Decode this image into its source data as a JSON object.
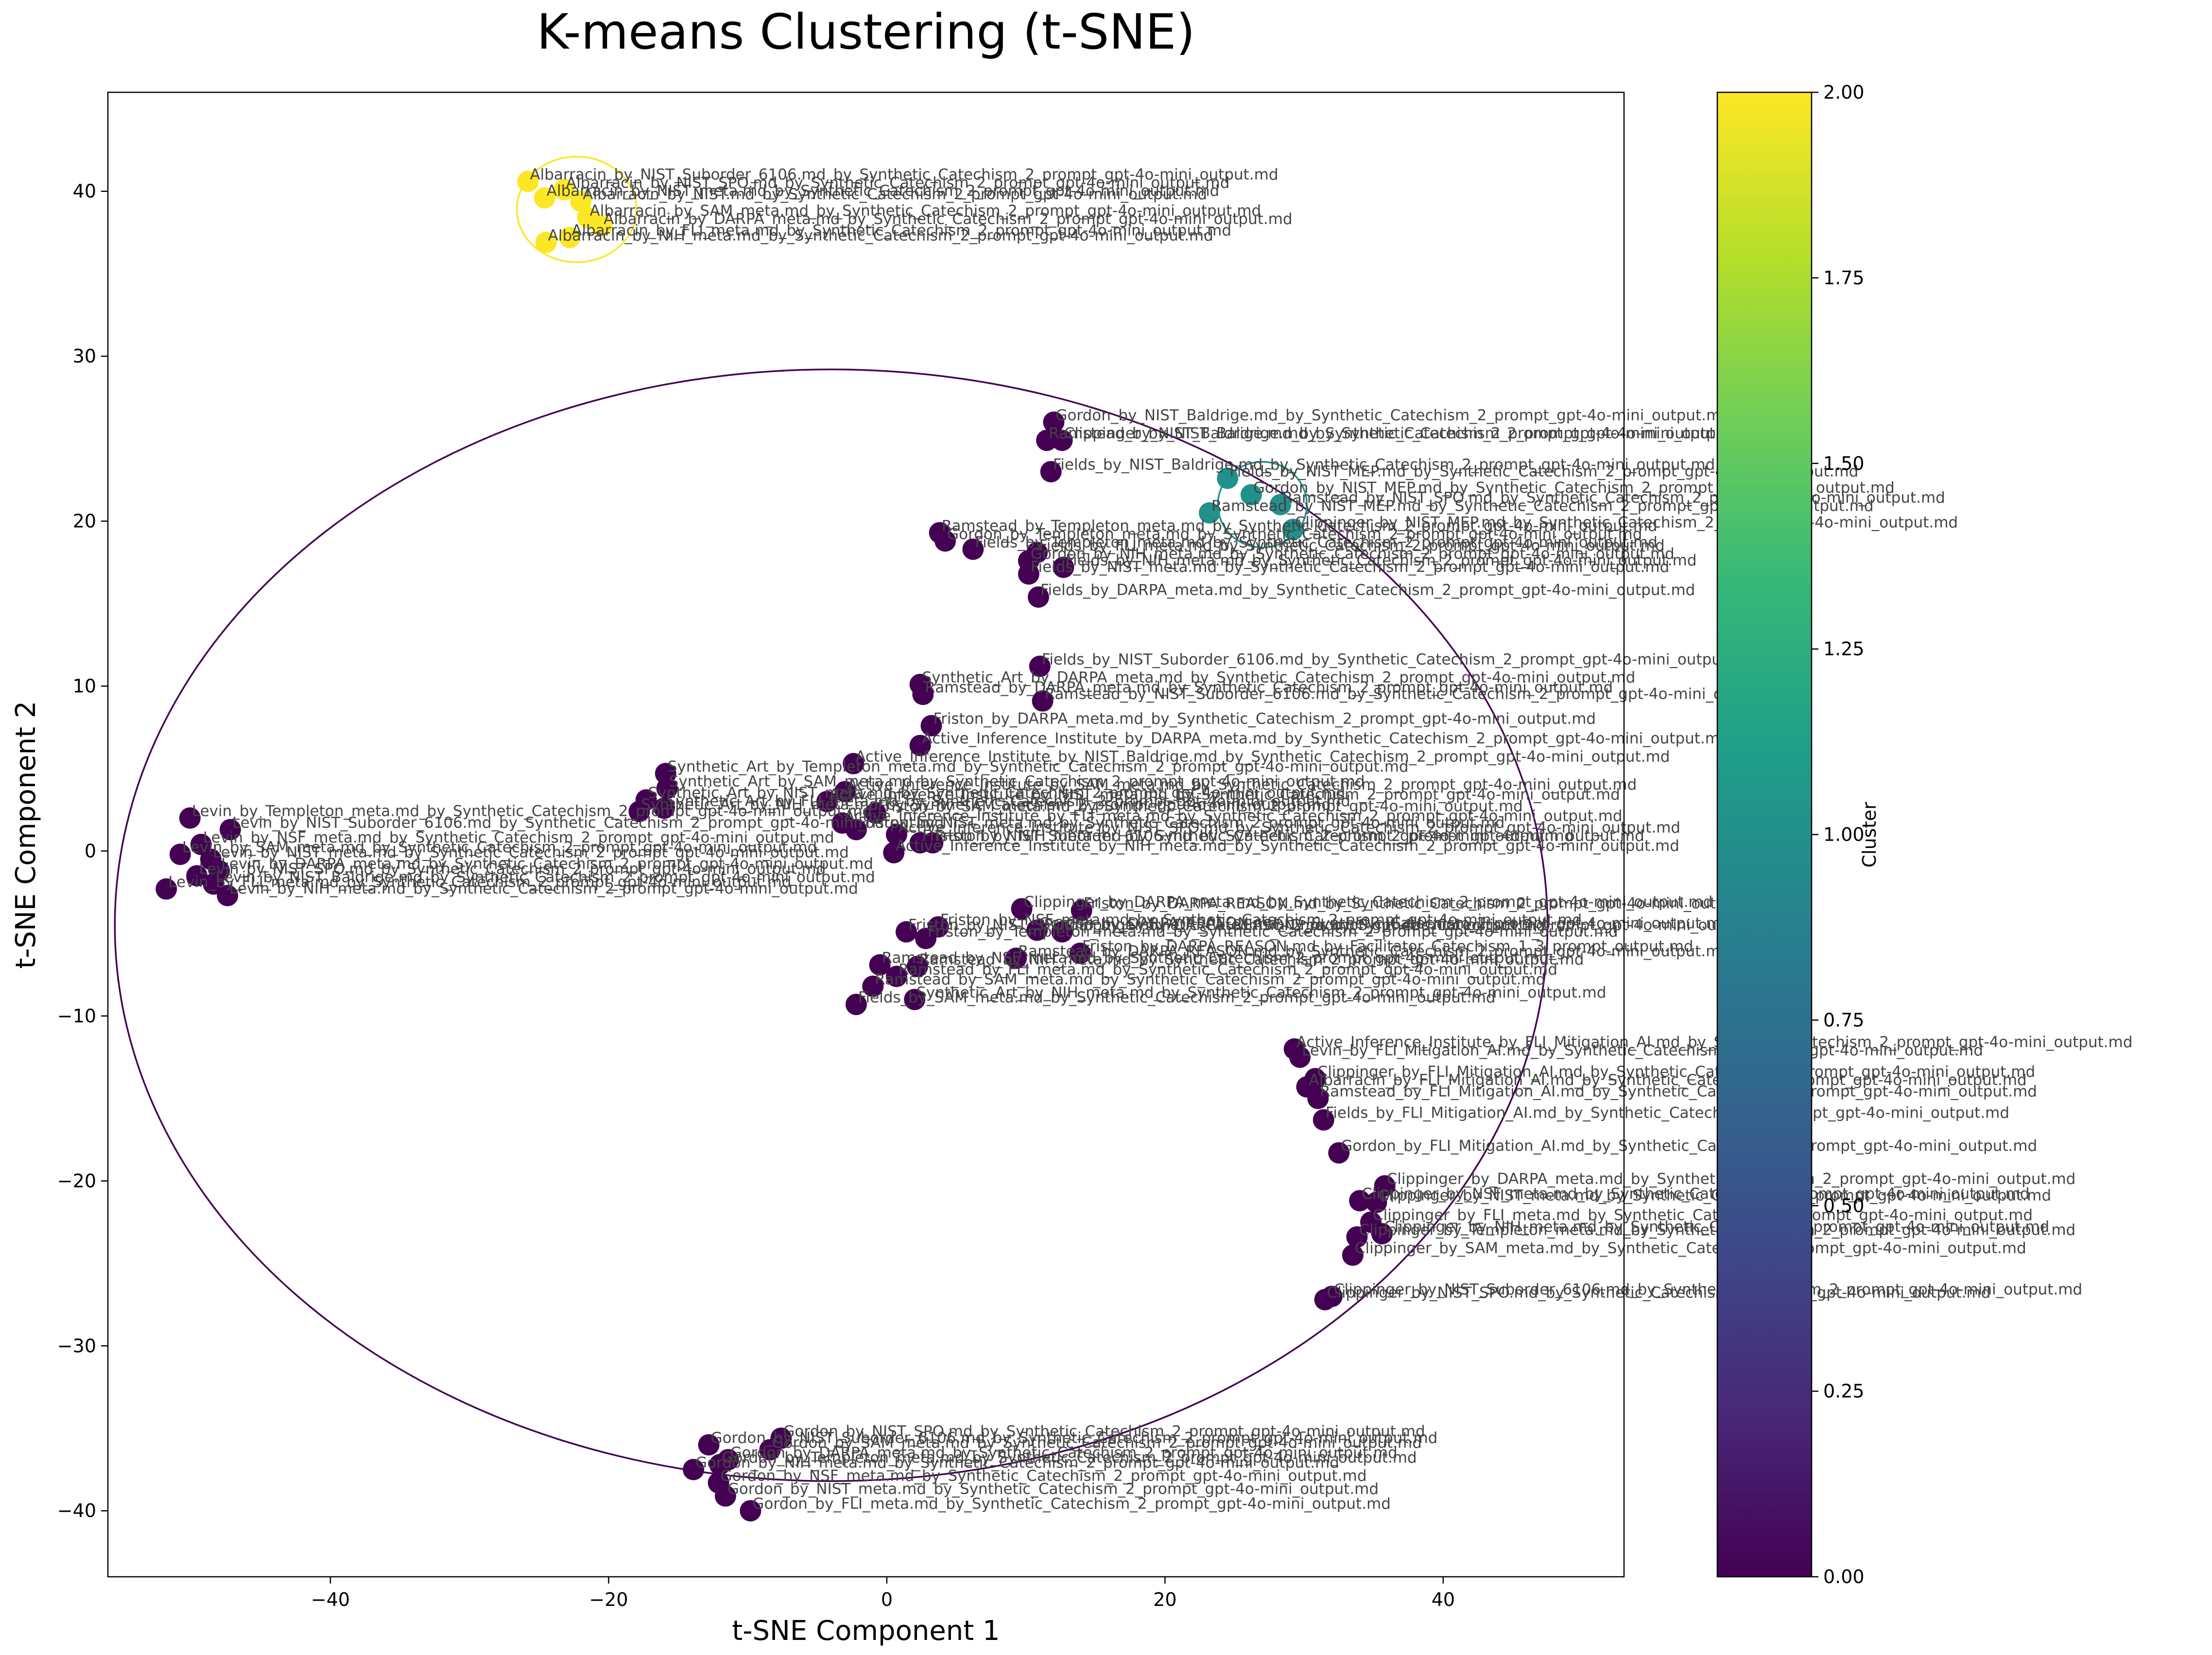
{
  "chart_data": {
    "type": "scatter",
    "title": "K-means Clustering (t-SNE)",
    "xlabel": "t-SNE Component 1",
    "ylabel": "t-SNE Component 2",
    "xlim": [
      -56,
      53
    ],
    "ylim": [
      -44,
      46
    ],
    "xticks": [
      -40,
      -20,
      0,
      20,
      40
    ],
    "yticks": [
      -40,
      -30,
      -20,
      -10,
      0,
      10,
      20,
      30,
      40
    ],
    "grid": false,
    "colorbar": {
      "label": "Cluster",
      "range": [
        0,
        2
      ],
      "ticks": [
        "0.00",
        "0.25",
        "0.50",
        "0.75",
        "1.00",
        "1.25",
        "1.50",
        "1.75",
        "2.00"
      ],
      "colormap": [
        "#440154",
        "#482878",
        "#3e4989",
        "#31688e",
        "#26828e",
        "#1f9e89",
        "#35b779",
        "#6ece58",
        "#b5de2b",
        "#fde725"
      ]
    },
    "cluster_colors": [
      "#440154",
      "#21918c",
      "#fde725"
    ],
    "cluster_ellipses": [
      {
        "cluster": 0,
        "cx": -4,
        "cy": -4.5,
        "rx": 51.5,
        "ry": 33.7
      },
      {
        "cluster": 1,
        "cx": 27,
        "cy": 21,
        "rx": 3.2,
        "ry": 2.6
      },
      {
        "cluster": 2,
        "cx": -22.3,
        "cy": 38.9,
        "rx": 4.3,
        "ry": 3.2
      }
    ],
    "points": [
      {
        "x": -25.8,
        "y": 40.6,
        "c": 2,
        "label": "Albarracin_by_NIST_Suborder_6106.md_by_Synthetic_Catechism_2_prompt_gpt-4o-mini_output.md"
      },
      {
        "x": -24.6,
        "y": 39.6,
        "c": 2,
        "label": "Albarracin_by_NIST_meta.md_by_Synthetic_Catechism_2_prompt_gpt-4o-mini_output.md"
      },
      {
        "x": -23.2,
        "y": 40.1,
        "c": 2,
        "label": "Albarracin_by_NIST_SPO.md_by_Synthetic_Catechism_2_prompt_gpt-4o-mini_output.md"
      },
      {
        "x": -22.0,
        "y": 39.4,
        "c": 2,
        "label": "Albarracin_by_NIST.md_by_Synthetic_Catechism_2_prompt_gpt-4o-mini_output.md"
      },
      {
        "x": -21.5,
        "y": 38.4,
        "c": 2,
        "label": "Albarracin_by_SAM_meta.md_by_Synthetic_Catechism_2_prompt_gpt-4o-mini_output.md"
      },
      {
        "x": -20.5,
        "y": 37.9,
        "c": 2,
        "label": "Albarracin_by_DARPA_meta.md_by_Synthetic_Catechism_2_prompt_gpt-4o-mini_output.md"
      },
      {
        "x": -22.8,
        "y": 37.2,
        "c": 2,
        "label": "Albarracin_by_FLI_meta.md_by_Synthetic_Catechism_2_prompt_gpt-4o-mini_output.md"
      },
      {
        "x": -24.5,
        "y": 36.9,
        "c": 2,
        "label": "Albarracin_by_NIH_meta.md_by_Synthetic_Catechism_2_prompt_gpt-4o-mini_output.md"
      },
      {
        "x": 24.5,
        "y": 22.6,
        "c": 1,
        "label": "Fields_by_NIST_MEP.md_by_Synthetic_Catechism_2_prompt_gpt-4o-mini_output.md"
      },
      {
        "x": 26.2,
        "y": 21.6,
        "c": 1,
        "label": "Gordon_by_NIST_MEP.md_by_Synthetic_Catechism_2_prompt_gpt-4o-mini_output.md"
      },
      {
        "x": 28.3,
        "y": 21.0,
        "c": 1,
        "label": "Ramstead_by_NIST_SPO.md_by_Synthetic_Catechism_2_prompt_gpt-4o-mini_output.md"
      },
      {
        "x": 23.2,
        "y": 20.5,
        "c": 1,
        "label": "Ramstead_by_NIST_MEP.md_by_Synthetic_Catechism_2_prompt_gpt-4o-mini_output.md"
      },
      {
        "x": 29.2,
        "y": 19.5,
        "c": 1,
        "label": "Clippinger_by_NIST_MEP.md_by_Synthetic_Catechism_2_prompt_gpt-4o-mini_output.md"
      },
      {
        "x": 12.0,
        "y": 26.0,
        "c": 0,
        "label": "Gordon_by_NIST_Baldrige.md_by_Synthetic_Catechism_2_prompt_gpt-4o-mini_output.md"
      },
      {
        "x": 11.5,
        "y": 24.9,
        "c": 0,
        "label": "Ramstead_by_NIST_Baldrige.md_by_Synthetic_Catechism_2_prompt_gpt-4o-mini_output.md"
      },
      {
        "x": 12.6,
        "y": 24.9,
        "c": 0,
        "label": "Clippinger_by_NIST_Baldrige.md_by_Synthetic_Catechism_2_prompt_gpt-4o-mini_output.md"
      },
      {
        "x": 11.8,
        "y": 23.0,
        "c": 0,
        "label": "Fields_by_NIST_Baldrige.md_by_Synthetic_Catechism_2_prompt_gpt-4o-mini_output.md"
      },
      {
        "x": 3.8,
        "y": 19.3,
        "c": 0,
        "label": "Ramstead_by_Templeton_meta.md_by_Synthetic_Catechism_2_prompt_gpt-4o-mini_output.md"
      },
      {
        "x": 4.2,
        "y": 18.8,
        "c": 0,
        "label": "Gordon_by_Templeton_meta.md_by_Synthetic_Catechism_2_prompt_gpt-4o-mini_output.md"
      },
      {
        "x": 6.2,
        "y": 18.3,
        "c": 0,
        "label": "Fields_by_Templeton_meta.md_by_Synthetic_Catechism_2_prompt_gpt-4o-mini_output.md"
      },
      {
        "x": 10.8,
        "y": 18.1,
        "c": 0,
        "label": "Fields_by_FLI_meta.md_by_Synthetic_Catechism_2_prompt_gpt-4o-mini_output.md"
      },
      {
        "x": 10.2,
        "y": 17.6,
        "c": 0,
        "label": "Gordon_by_NIH_meta.md_by_Synthetic_Catechism_2_prompt_gpt-4o-mini_output.md"
      },
      {
        "x": 12.7,
        "y": 17.2,
        "c": 0,
        "label": "Fields_by_NIH_meta.md_by_Synthetic_Catechism_2_prompt_gpt-4o-mini_output.md"
      },
      {
        "x": 10.2,
        "y": 16.8,
        "c": 0,
        "label": "Fields_by_NIST_meta.md_by_Synthetic_Catechism_2_prompt_gpt-4o-mini_output.md"
      },
      {
        "x": 10.9,
        "y": 15.4,
        "c": 0,
        "label": "Fields_by_DARPA_meta.md_by_Synthetic_Catechism_2_prompt_gpt-4o-mini_output.md"
      },
      {
        "x": 11.0,
        "y": 11.2,
        "c": 0,
        "label": "Fields_by_NIST_Suborder_6106.md_by_Synthetic_Catechism_2_prompt_gpt-4o-mini_output.md"
      },
      {
        "x": 2.4,
        "y": 10.1,
        "c": 0,
        "label": "Synthetic_Art_by_DARPA_meta.md_by_Synthetic_Catechism_2_prompt_gpt-4o-mini_output.md"
      },
      {
        "x": 2.6,
        "y": 9.5,
        "c": 0,
        "label": "Ramstead_by_DARPA_meta.md_by_Synthetic_Catechism_2_prompt_gpt-4o-mini_output.md"
      },
      {
        "x": 11.2,
        "y": 9.1,
        "c": 0,
        "label": "Ramstead_by_NIST_Suborder_6106.md_by_Synthetic_Catechism_2_prompt_gpt-4o-mini_output.md"
      },
      {
        "x": 3.2,
        "y": 7.6,
        "c": 0,
        "label": "Friston_by_DARPA_meta.md_by_Synthetic_Catechism_2_prompt_gpt-4o-mini_output.md"
      },
      {
        "x": 2.4,
        "y": 6.4,
        "c": 0,
        "label": "Active_Inference_Institute_by_DARPA_meta.md_by_Synthetic_Catechism_2_prompt_gpt-4o-mini_output.md"
      },
      {
        "x": -2.4,
        "y": 5.3,
        "c": 0,
        "label": "Active_Inference_Institute_by_NIST_Baldrige.md_by_Synthetic_Catechism_2_prompt_gpt-4o-mini_output.md"
      },
      {
        "x": -15.9,
        "y": 4.7,
        "c": 0,
        "label": "Synthetic_Art_by_Templeton_meta.md_by_Synthetic_Catechism_2_prompt_gpt-4o-mini_output.md"
      },
      {
        "x": -15.8,
        "y": 3.8,
        "c": 0,
        "label": "Synthetic_Art_by_SAM_meta.md_by_Synthetic_Catechism_2_prompt_gpt-4o-mini_output.md"
      },
      {
        "x": -17.3,
        "y": 3.1,
        "c": 0,
        "label": "Synthetic_Art_by_NIST_meta.md_by_Synthetic_Catechism_2_prompt_gpt-4o-mini_output.md"
      },
      {
        "x": -16.0,
        "y": 2.6,
        "c": 0,
        "label": "Synthetic_Art_by_FLI_meta.md_by_Synthetic_Catechism_2_prompt_gpt-4o-mini_output.md"
      },
      {
        "x": -17.8,
        "y": 2.4,
        "c": 0,
        "label": "Synthetic_Art_by_NIH_meta.md_by_Synthetic_Catechism_2_prompt_gpt-4o-mini_output.md"
      },
      {
        "x": -3.0,
        "y": 3.6,
        "c": 0,
        "label": "Active_Inference_Institute_by_SAM_meta.md_by_Synthetic_Catechism_2_prompt_gpt-4o-mini_output.md"
      },
      {
        "x": -4.3,
        "y": 3.0,
        "c": 0,
        "label": "Active_Inference_Institute_by_NIST_meta.md_by_Synthetic_Catechism_2_prompt_gpt-4o-mini_output.md"
      },
      {
        "x": -0.8,
        "y": 2.3,
        "c": 0,
        "label": "Friston_by_SAM_meta.md_by_Synthetic_Catechism_2_prompt_gpt-4o-mini_output.md"
      },
      {
        "x": -3.2,
        "y": 1.7,
        "c": 0,
        "label": "Active_Inference_Institute_by_FLI_meta.md_by_Synthetic_Catechism_2_prompt_gpt-4o-mini_output.md"
      },
      {
        "x": -2.2,
        "y": 1.3,
        "c": 0,
        "label": "Friston_by_NIST_meta.md_by_Synthetic_Catechism_2_prompt_gpt-4o-mini_output.md"
      },
      {
        "x": 0.7,
        "y": 1.0,
        "c": 0,
        "label": "Active_Inference_Institute_by_NIST_SPO.md_by_Synthetic_Catechism_2_prompt_gpt-4o-mini_output.md"
      },
      {
        "x": 2.4,
        "y": 0.5,
        "c": 0,
        "label": "Friston_by_NIST_Suborder_6106.md_by_Synthetic_Catechism_2_prompt_gpt-4o-mini_output.md"
      },
      {
        "x": 3.3,
        "y": 0.5,
        "c": 0,
        "label": "Friston_by_NIH_meta.md_by_Synthetic_Catechism_2_prompt_gpt-4o-mini_output.md"
      },
      {
        "x": 0.5,
        "y": -0.1,
        "c": 0,
        "label": "Active_Inference_Institute_by_NIH_meta.md_by_Synthetic_Catechism_2_prompt_gpt-4o-mini_output.md"
      },
      {
        "x": -50.1,
        "y": 2.0,
        "c": 0,
        "label": "Levin_by_Templeton_meta.md_by_Synthetic_Catechism_2_prompt_gpt-4o-mini_output.md"
      },
      {
        "x": -47.2,
        "y": 1.3,
        "c": 0,
        "label": "Levin_by_NIST_Suborder_6106.md_by_Synthetic_Catechism_2_prompt_gpt-4o-mini_output.md"
      },
      {
        "x": -49.3,
        "y": 0.4,
        "c": 0,
        "label": "Levin_by_NSF_meta.md_by_Synthetic_Catechism_2_prompt_gpt-4o-mini_output.md"
      },
      {
        "x": -50.8,
        "y": -0.2,
        "c": 0,
        "label": "Levin_by_SAM_meta.md_by_Synthetic_Catechism_2_prompt_gpt-4o-mini_output.md"
      },
      {
        "x": -48.6,
        "y": -0.5,
        "c": 0,
        "label": "Levin_by_NIST_meta.md_by_Synthetic_Catechism_2_prompt_gpt-4o-mini_output.md"
      },
      {
        "x": -48.0,
        "y": -1.2,
        "c": 0,
        "label": "Levin_by_DARPA_meta.md_by_Synthetic_Catechism_2_prompt_gpt-4o-mini_output.md"
      },
      {
        "x": -49.6,
        "y": -1.5,
        "c": 0,
        "label": "Levin_by_NIST_SPO.md_by_Synthetic_Catechism_2_prompt_gpt-4o-mini_output.md"
      },
      {
        "x": -48.4,
        "y": -2.0,
        "c": 0,
        "label": "Levin_by_NIST_Baldrige.md_by_Synthetic_Catechism_2_prompt_gpt-4o-mini_output.md"
      },
      {
        "x": -51.8,
        "y": -2.3,
        "c": 0,
        "label": "Levin_by_FLI_meta.md_by_Synthetic_Catechism_2_prompt_gpt-4o-mini_output.md"
      },
      {
        "x": -47.4,
        "y": -2.7,
        "c": 0,
        "label": "Levin_by_NIH_meta.md_by_Synthetic_Catechism_2_prompt_gpt-4o-mini_output.md"
      },
      {
        "x": 9.7,
        "y": -3.5,
        "c": 0,
        "label": "Clippinger_by_DARPA_meta.md_by_Synthetic_Catechism_2_prompt_gpt-4o-mini_output.md"
      },
      {
        "x": 14.0,
        "y": -3.6,
        "c": 0,
        "label": "Friston_by_DARPA_REASON.md_by_Synthetic_Catechism_2_prompt_gpt-4o-mini_output.md"
      },
      {
        "x": 3.7,
        "y": -4.6,
        "c": 0,
        "label": "Friston_by_NSF_meta.md_by_Synthetic_Catechism_2_prompt_gpt-4o-mini_output.md"
      },
      {
        "x": 1.4,
        "y": -4.9,
        "c": 0,
        "label": "Friston_by_NIST_SPO.md_by_Synthetic_Catechism_2_prompt_gpt-4o-mini_output.md"
      },
      {
        "x": 2.8,
        "y": -5.3,
        "c": 0,
        "label": "Friston_by_Templeton_meta.md_by_Synthetic_Catechism_2_prompt_gpt-4o-mini_output.md"
      },
      {
        "x": 10.8,
        "y": -4.8,
        "c": 0,
        "label": "Gordon_by_DARPA_REASON.md_by_Synthetic_Catechism_2_prompt_gpt-4o-mini_output.md"
      },
      {
        "x": 12.6,
        "y": -4.9,
        "c": 0,
        "label": "Clippinger_by_DARPA_REASON.md_by_Synthetic_Catechism_2_prompt_gpt-4o-mini_output.md"
      },
      {
        "x": 13.9,
        "y": -6.2,
        "c": 0,
        "label": "Friston_by_DARPA_REASON.md_by_Facilitator_Catechism_1_3_prompt_output.md"
      },
      {
        "x": 9.3,
        "y": -6.5,
        "c": 0,
        "label": "Ramstead_by_DARPA_REASON.md_by_Synthetic_Catechism_2_prompt_gpt-4o-mini_output.md"
      },
      {
        "x": -0.5,
        "y": -6.9,
        "c": 0,
        "label": "Ramstead_by_NSF_meta.md_by_Synthetic_Catechism_2_prompt_gpt-4o-mini_output.md"
      },
      {
        "x": 2.2,
        "y": -7.0,
        "c": 0,
        "label": "Ramstead_by_NIH_meta.md_by_Synthetic_Catechism_2_prompt_gpt-4o-mini_output.md"
      },
      {
        "x": 0.7,
        "y": -7.6,
        "c": 0,
        "label": "Ramstead_by_FLI_meta.md_by_Synthetic_Catechism_2_prompt_gpt-4o-mini_output.md"
      },
      {
        "x": -1.0,
        "y": -8.2,
        "c": 0,
        "label": "Ramstead_by_SAM_meta.md_by_Synthetic_Catechism_2_prompt_gpt-4o-mini_output.md"
      },
      {
        "x": 2.0,
        "y": -9.0,
        "c": 0,
        "label": "Synthetic_Art_by_NIH_meta.md_by_Synthetic_Catechism_2_prompt_gpt-4o-mini_output.md"
      },
      {
        "x": -2.2,
        "y": -9.3,
        "c": 0,
        "label": "Fields_by_SAM_meta.md_by_Synthetic_Catechism_2_prompt_gpt-4o-mini_output.md"
      },
      {
        "x": 29.3,
        "y": -12.0,
        "c": 0,
        "label": "Active_Inference_Institute_by_FLI_Mitigation_AI.md_by_Synthetic_Catechism_2_prompt_gpt-4o-mini_output.md"
      },
      {
        "x": 29.7,
        "y": -12.5,
        "c": 0,
        "label": "Levin_by_FLI_Mitigation_AI.md_by_Synthetic_Catechism_2_prompt_gpt-4o-mini_output.md"
      },
      {
        "x": 30.8,
        "y": -13.8,
        "c": 0,
        "label": "Clippinger_by_FLI_Mitigation_AI.md_by_Synthetic_Catechism_2_prompt_gpt-4o-mini_output.md"
      },
      {
        "x": 30.2,
        "y": -14.3,
        "c": 0,
        "label": "Albarracin_by_FLI_Mitigation_AI.md_by_Synthetic_Catechism_2_prompt_gpt-4o-mini_output.md"
      },
      {
        "x": 31.0,
        "y": -15.0,
        "c": 0,
        "label": "Ramstead_by_FLI_Mitigation_AI.md_by_Synthetic_Catechism_2_prompt_gpt-4o-mini_output.md"
      },
      {
        "x": 31.4,
        "y": -16.3,
        "c": 0,
        "label": "Fields_by_FLI_Mitigation_AI.md_by_Synthetic_Catechism_2_prompt_gpt-4o-mini_output.md"
      },
      {
        "x": 32.5,
        "y": -18.3,
        "c": 0,
        "label": "Gordon_by_FLI_Mitigation_AI.md_by_Synthetic_Catechism_2_prompt_gpt-4o-mini_output.md"
      },
      {
        "x": 35.8,
        "y": -20.3,
        "c": 0,
        "label": "Clippinger_by_DARPA_meta.md_by_Synthetic_Catechism_2_prompt_gpt-4o-mini_output.md"
      },
      {
        "x": 34.0,
        "y": -21.2,
        "c": 0,
        "label": "Clippinger_by_NSF_meta.md_by_Synthetic_Catechism_2_prompt_gpt-4o-mini_output.md"
      },
      {
        "x": 35.2,
        "y": -21.3,
        "c": 0,
        "label": "Clippinger_by_NIST_meta.md_by_Synthetic_Catechism_2_prompt_gpt-4o-mini_output.md"
      },
      {
        "x": 34.8,
        "y": -22.5,
        "c": 0,
        "label": "Clippinger_by_FLI_meta.md_by_Synthetic_Catechism_2_prompt_gpt-4o-mini_output.md"
      },
      {
        "x": 33.8,
        "y": -23.4,
        "c": 0,
        "label": "Clippinger_by_Templeton_meta.md_by_Synthetic_Catechism_2_prompt_gpt-4o-mini_output.md"
      },
      {
        "x": 35.6,
        "y": -23.2,
        "c": 0,
        "label": "Clippinger_by_NIH_meta.md_by_Synthetic_Catechism_2_prompt_gpt-4o-mini_output.md"
      },
      {
        "x": 33.5,
        "y": -24.5,
        "c": 0,
        "label": "Clippinger_by_SAM_meta.md_by_Synthetic_Catechism_2_prompt_gpt-4o-mini_output.md"
      },
      {
        "x": 32.0,
        "y": -27.0,
        "c": 0,
        "label": "Clippinger_by_NIST_Suborder_6106.md_by_Synthetic_Catechism_2_prompt_gpt-4o-mini_output.md"
      },
      {
        "x": 31.5,
        "y": -27.2,
        "c": 0,
        "label": "Clippinger_by_NIST_SPO.md_by_Synthetic_Catechism_2_prompt_gpt-4o-mini_output.md"
      },
      {
        "x": -7.6,
        "y": -35.6,
        "c": 0,
        "label": "Gordon_by_NIST_SPO.md_by_Synthetic_Catechism_2_prompt_gpt-4o-mini_output.md"
      },
      {
        "x": -12.8,
        "y": -36.0,
        "c": 0,
        "label": "Gordon_by_NIST_Suborder_6106.md_by_Synthetic_Catechism_2_prompt_gpt-4o-mini_output.md"
      },
      {
        "x": -8.4,
        "y": -36.3,
        "c": 0,
        "label": "Gordon_by_SAM_meta.md_by_Synthetic_Catechism_2_prompt_gpt-4o-mini_output.md"
      },
      {
        "x": -11.4,
        "y": -36.9,
        "c": 0,
        "label": "Gordon_by_DARPA_meta.md_by_Synthetic_Catechism_2_prompt_gpt-4o-mini_output.md"
      },
      {
        "x": -12.0,
        "y": -37.2,
        "c": 0,
        "label": "Gordon_by_Templeton_meta.md_by_Synthetic_Catechism_2_prompt_gpt-4o-mini_output.md"
      },
      {
        "x": -13.9,
        "y": -37.5,
        "c": 0,
        "label": "Gordon_by_NIH_meta.md_by_Synthetic_Catechism_2_prompt_gpt-4o-mini_output.md"
      },
      {
        "x": -12.1,
        "y": -38.3,
        "c": 0,
        "label": "Gordon_by_NSF_meta.md_by_Synthetic_Catechism_2_prompt_gpt-4o-mini_output.md"
      },
      {
        "x": -11.6,
        "y": -39.1,
        "c": 0,
        "label": "Gordon_by_NIST_meta.md_by_Synthetic_Catechism_2_prompt_gpt-4o-mini_output.md"
      },
      {
        "x": -9.8,
        "y": -40.0,
        "c": 0,
        "label": "Gordon_by_FLI_meta.md_by_Synthetic_Catechism_2_prompt_gpt-4o-mini_output.md"
      }
    ]
  }
}
